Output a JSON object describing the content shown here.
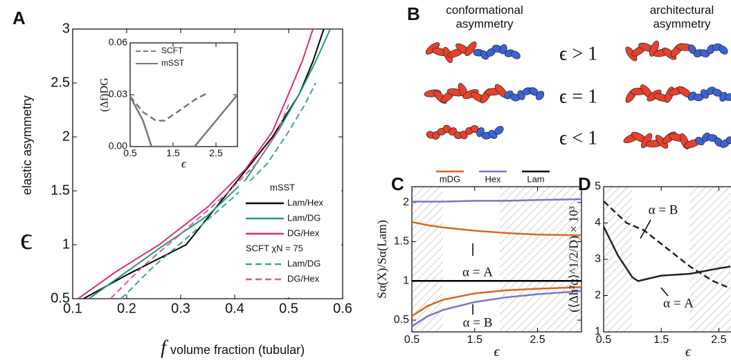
{
  "panel_labels": [
    "A",
    "B",
    "C",
    "D"
  ],
  "panel_b": {
    "left_title": "conformational asymmetry",
    "right_title": "architectural asymmetry",
    "rows": [
      "ϵ > 1",
      "ϵ = 1",
      "ϵ < 1"
    ]
  },
  "chart_data": [
    {
      "type": "line",
      "x_symbol": "f",
      "x_label": "volume fraction (tubular)",
      "y_symbol": "ϵ",
      "y_label": "elastic asymmetry",
      "xlim": [
        0.1,
        0.6
      ],
      "ylim": [
        0.5,
        3.0
      ],
      "xticks": [
        0.1,
        0.2,
        0.3,
        0.4,
        0.5,
        0.6
      ],
      "yticks": [
        0.5,
        1.0,
        1.5,
        2.0,
        2.5,
        3.0
      ],
      "legend": "lower right",
      "series": [
        {
          "group": "mSST",
          "name": "Lam/Hex",
          "color": "#000000",
          "dash": false,
          "x": [
            0.12,
            0.2,
            0.31,
            0.39,
            0.47,
            0.52,
            0.545,
            0.565
          ],
          "values": [
            0.5,
            0.72,
            1.0,
            1.5,
            2.0,
            2.4,
            2.7,
            3.0
          ]
        },
        {
          "group": "mSST",
          "name": "Lam/DG",
          "color": "#1a9e77",
          "dash": false,
          "x": [
            0.13,
            0.2,
            0.27,
            0.35,
            0.42,
            0.48,
            0.52,
            0.55,
            0.577
          ],
          "values": [
            0.5,
            0.75,
            1.0,
            1.27,
            1.6,
            2.05,
            2.4,
            2.7,
            3.0
          ]
        },
        {
          "group": "mSST",
          "name": "DG/Hex",
          "color": "#e0297a",
          "dash": false,
          "x": [
            0.11,
            0.18,
            0.26,
            0.35,
            0.42,
            0.47,
            0.5,
            0.525,
            0.545
          ],
          "values": [
            0.5,
            0.75,
            1.0,
            1.35,
            1.7,
            2.05,
            2.4,
            2.7,
            3.0
          ]
        },
        {
          "group": "SCFT χN = 75",
          "name": "Lam/DG",
          "color": "#3aa87f",
          "dash": true,
          "x": [
            0.19,
            0.25,
            0.32,
            0.4,
            0.46,
            0.5,
            0.53,
            0.55
          ],
          "values": [
            0.5,
            0.8,
            1.1,
            1.45,
            1.75,
            2.05,
            2.3,
            2.5
          ]
        },
        {
          "group": "SCFT χN = 75",
          "name": "DG/Hex",
          "color": "#e0559a",
          "dash": true,
          "x": [
            0.17,
            0.23,
            0.3,
            0.38,
            0.44,
            0.48,
            0.5
          ],
          "values": [
            0.5,
            0.8,
            1.1,
            1.45,
            1.75,
            2.05,
            2.3
          ]
        }
      ]
    },
    {
      "type": "line",
      "x_label": "ϵ",
      "y_label": "(Δf)DG",
      "xlim": [
        0.5,
        3.0
      ],
      "ylim": [
        0,
        0.06
      ],
      "xticks": [
        0.5,
        1.5,
        2.5
      ],
      "yticks": [
        {
          "value": 0,
          "label": "0.00"
        },
        {
          "value": 0.03,
          "label": "0.03"
        },
        {
          "value": 0.06,
          "label": "0.06"
        }
      ],
      "legend": "upper left",
      "series": [
        {
          "name": "SCFT",
          "color": "#777777",
          "dash": true,
          "x": [
            0.5,
            0.8,
            1.1,
            1.3,
            1.6,
            2.0,
            2.3
          ],
          "values": [
            0.029,
            0.02,
            0.015,
            0.015,
            0.02,
            0.027,
            0.031
          ]
        },
        {
          "name": "mSST",
          "color": "#777777",
          "dash": false,
          "x": [
            0.5,
            0.8,
            1.0,
            2.0,
            2.5,
            3.0
          ],
          "values": [
            0.029,
            0.015,
            0,
            0,
            0.015,
            0.03
          ]
        }
      ]
    },
    {
      "type": "line",
      "x_label": "ϵ",
      "y_label": "Sα(X)/Sα(Lam)",
      "xlim": [
        0.5,
        3.2
      ],
      "ylim": [
        0.35,
        2.2
      ],
      "xticks": [
        0.5,
        1.5,
        2.5
      ],
      "yticks": [
        0.5,
        1.0,
        1.5,
        2.0
      ],
      "legend": "top",
      "annotations": [
        "α = A",
        "α = B"
      ],
      "series": [
        {
          "name": "mDG",
          "color": "#d9661f",
          "dash": false,
          "x": [
            0.5,
            0.75,
            1,
            1.5,
            2,
            2.5,
            3.2
          ],
          "values": [
            1.75,
            1.71,
            1.68,
            1.64,
            1.61,
            1.59,
            1.58
          ]
        },
        {
          "name": "Hex",
          "color": "#7b74c9",
          "dash": false,
          "x": [
            0.5,
            0.75,
            1,
            1.5,
            2,
            2.5,
            3.2
          ],
          "values": [
            2.01,
            2.01,
            2.01,
            2.02,
            2.02,
            2.03,
            2.04
          ]
        },
        {
          "name": "Lam",
          "color": "#000000",
          "dash": false,
          "x": [
            0.5,
            3.2
          ],
          "values": [
            1.0,
            1.0
          ]
        },
        {
          "name": "mDG",
          "color": "#d9661f",
          "dash": false,
          "x": [
            0.5,
            0.75,
            1,
            1.5,
            2,
            2.5,
            3.2
          ],
          "values": [
            0.55,
            0.68,
            0.76,
            0.84,
            0.88,
            0.9,
            0.92
          ]
        },
        {
          "name": "Hex",
          "color": "#7b74c9",
          "dash": false,
          "x": [
            0.5,
            0.75,
            1,
            1.5,
            2,
            2.5,
            3.2
          ],
          "values": [
            0.42,
            0.55,
            0.63,
            0.73,
            0.79,
            0.83,
            0.87
          ]
        }
      ]
    },
    {
      "type": "line",
      "x_label": "ϵ",
      "y_label": "(⟨Δh²α⟩^1/2/D) × 10³",
      "xlim": [
        0.5,
        3.0
      ],
      "ylim": [
        1,
        5
      ],
      "xticks": [
        0.5,
        1.5,
        2.5
      ],
      "yticks": [
        1,
        2,
        3,
        4,
        5
      ],
      "annotations": [
        "α = B",
        "α = A"
      ],
      "series": [
        {
          "color": "#222222",
          "dash": true,
          "x": [
            0.5,
            0.9,
            1.2,
            1.6,
            2.0,
            2.4,
            2.7
          ],
          "values": [
            4.6,
            4.0,
            3.8,
            3.3,
            2.8,
            2.4,
            2.2
          ]
        },
        {
          "color": "#222222",
          "dash": false,
          "x": [
            0.5,
            0.75,
            1.0,
            1.1,
            1.5,
            2.0,
            2.5,
            2.7
          ],
          "values": [
            3.9,
            3.1,
            2.5,
            2.4,
            2.55,
            2.6,
            2.75,
            2.8
          ]
        }
      ]
    }
  ]
}
